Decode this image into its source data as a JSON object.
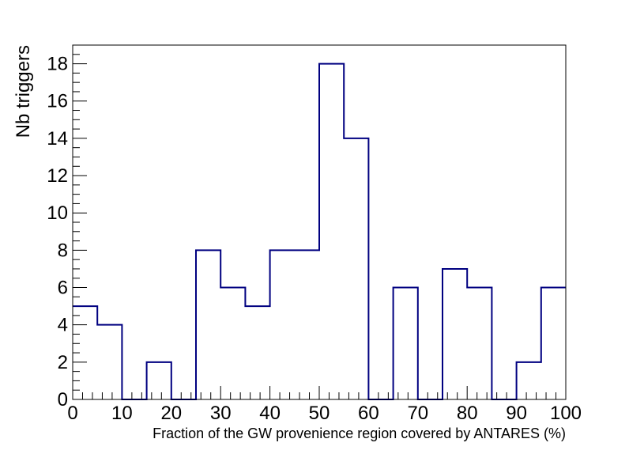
{
  "chart_data": {
    "type": "bar",
    "style": "step-histogram",
    "xlabel": "Fraction of the GW provenience region covered by ANTARES (%)",
    "ylabel": "Nb triggers",
    "xlim": [
      0,
      100
    ],
    "ylim": [
      0,
      19
    ],
    "bin_width": 5,
    "bin_edges": [
      0,
      5,
      10,
      15,
      20,
      25,
      30,
      35,
      40,
      45,
      50,
      55,
      60,
      65,
      70,
      75,
      80,
      85,
      90,
      95,
      100
    ],
    "values": [
      5,
      4,
      0,
      2,
      0,
      8,
      6,
      5,
      8,
      8,
      18,
      14,
      0,
      6,
      0,
      7,
      6,
      0,
      2,
      6
    ],
    "x_ticks": [
      0,
      10,
      20,
      30,
      40,
      50,
      60,
      70,
      80,
      90,
      100
    ],
    "y_ticks": [
      0,
      2,
      4,
      6,
      8,
      10,
      12,
      14,
      16,
      18
    ],
    "line_color": "#000080",
    "grid": false
  }
}
